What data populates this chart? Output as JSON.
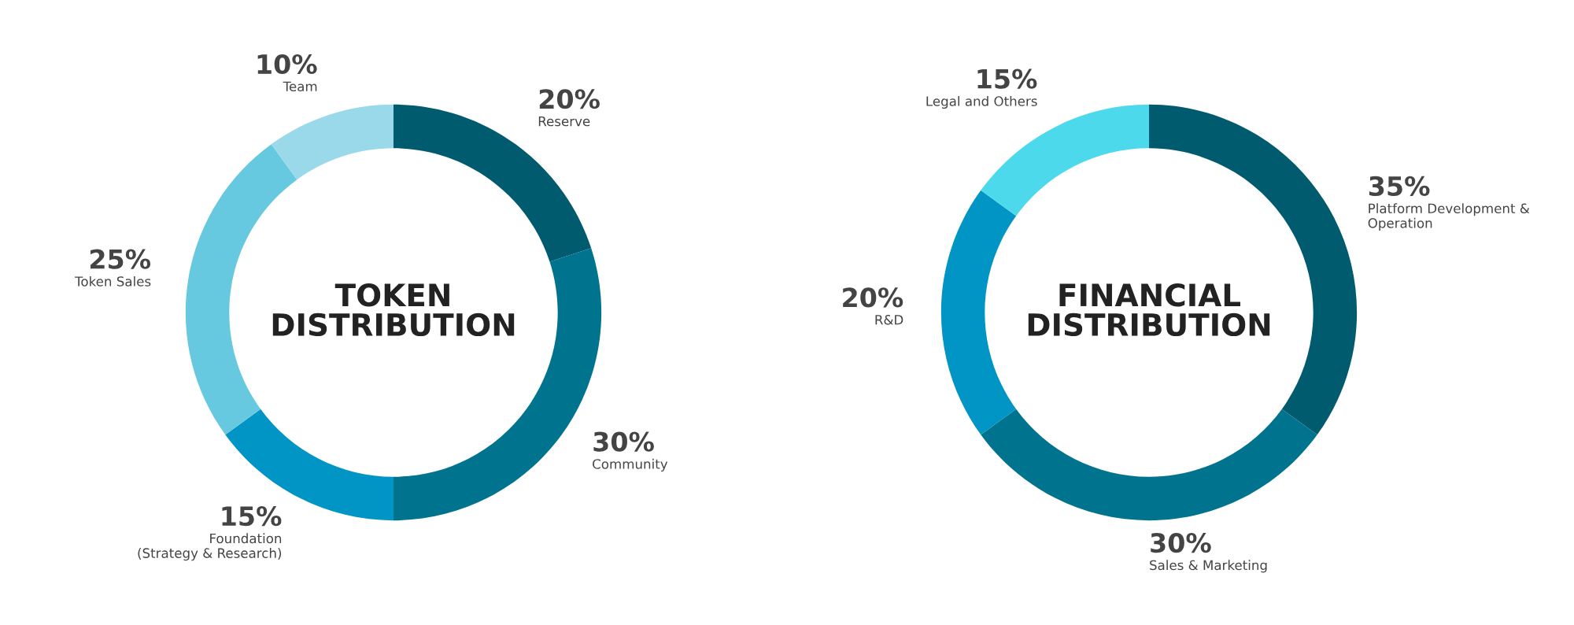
{
  "chart_data": [
    {
      "type": "donut",
      "title": "TOKEN\nDISTRIBUTION",
      "categories": [
        "Reserve",
        "Community",
        "Foundation\n(Strategy & Research)",
        "Token Sales",
        "Team"
      ],
      "values": [
        20,
        30,
        15,
        25,
        10
      ],
      "colors": [
        "#005b6e",
        "#00748f",
        "#0095c4",
        "#66c9e0",
        "#9ad9e9"
      ],
      "value_labels": [
        "20%",
        "30%",
        "15%",
        "25%",
        "10%"
      ],
      "legend": false
    },
    {
      "type": "donut",
      "title": "FINANCIAL\nDISTRIBUTION",
      "categories": [
        "Platform Development &\nOperation",
        "Sales & Marketing",
        "R&D",
        "Legal and Others"
      ],
      "values": [
        35,
        30,
        20,
        15
      ],
      "colors": [
        "#005b6e",
        "#00748f",
        "#0095c4",
        "#4dd9ec"
      ],
      "value_labels": [
        "35%",
        "30%",
        "20%",
        "15%"
      ],
      "legend": false
    }
  ]
}
